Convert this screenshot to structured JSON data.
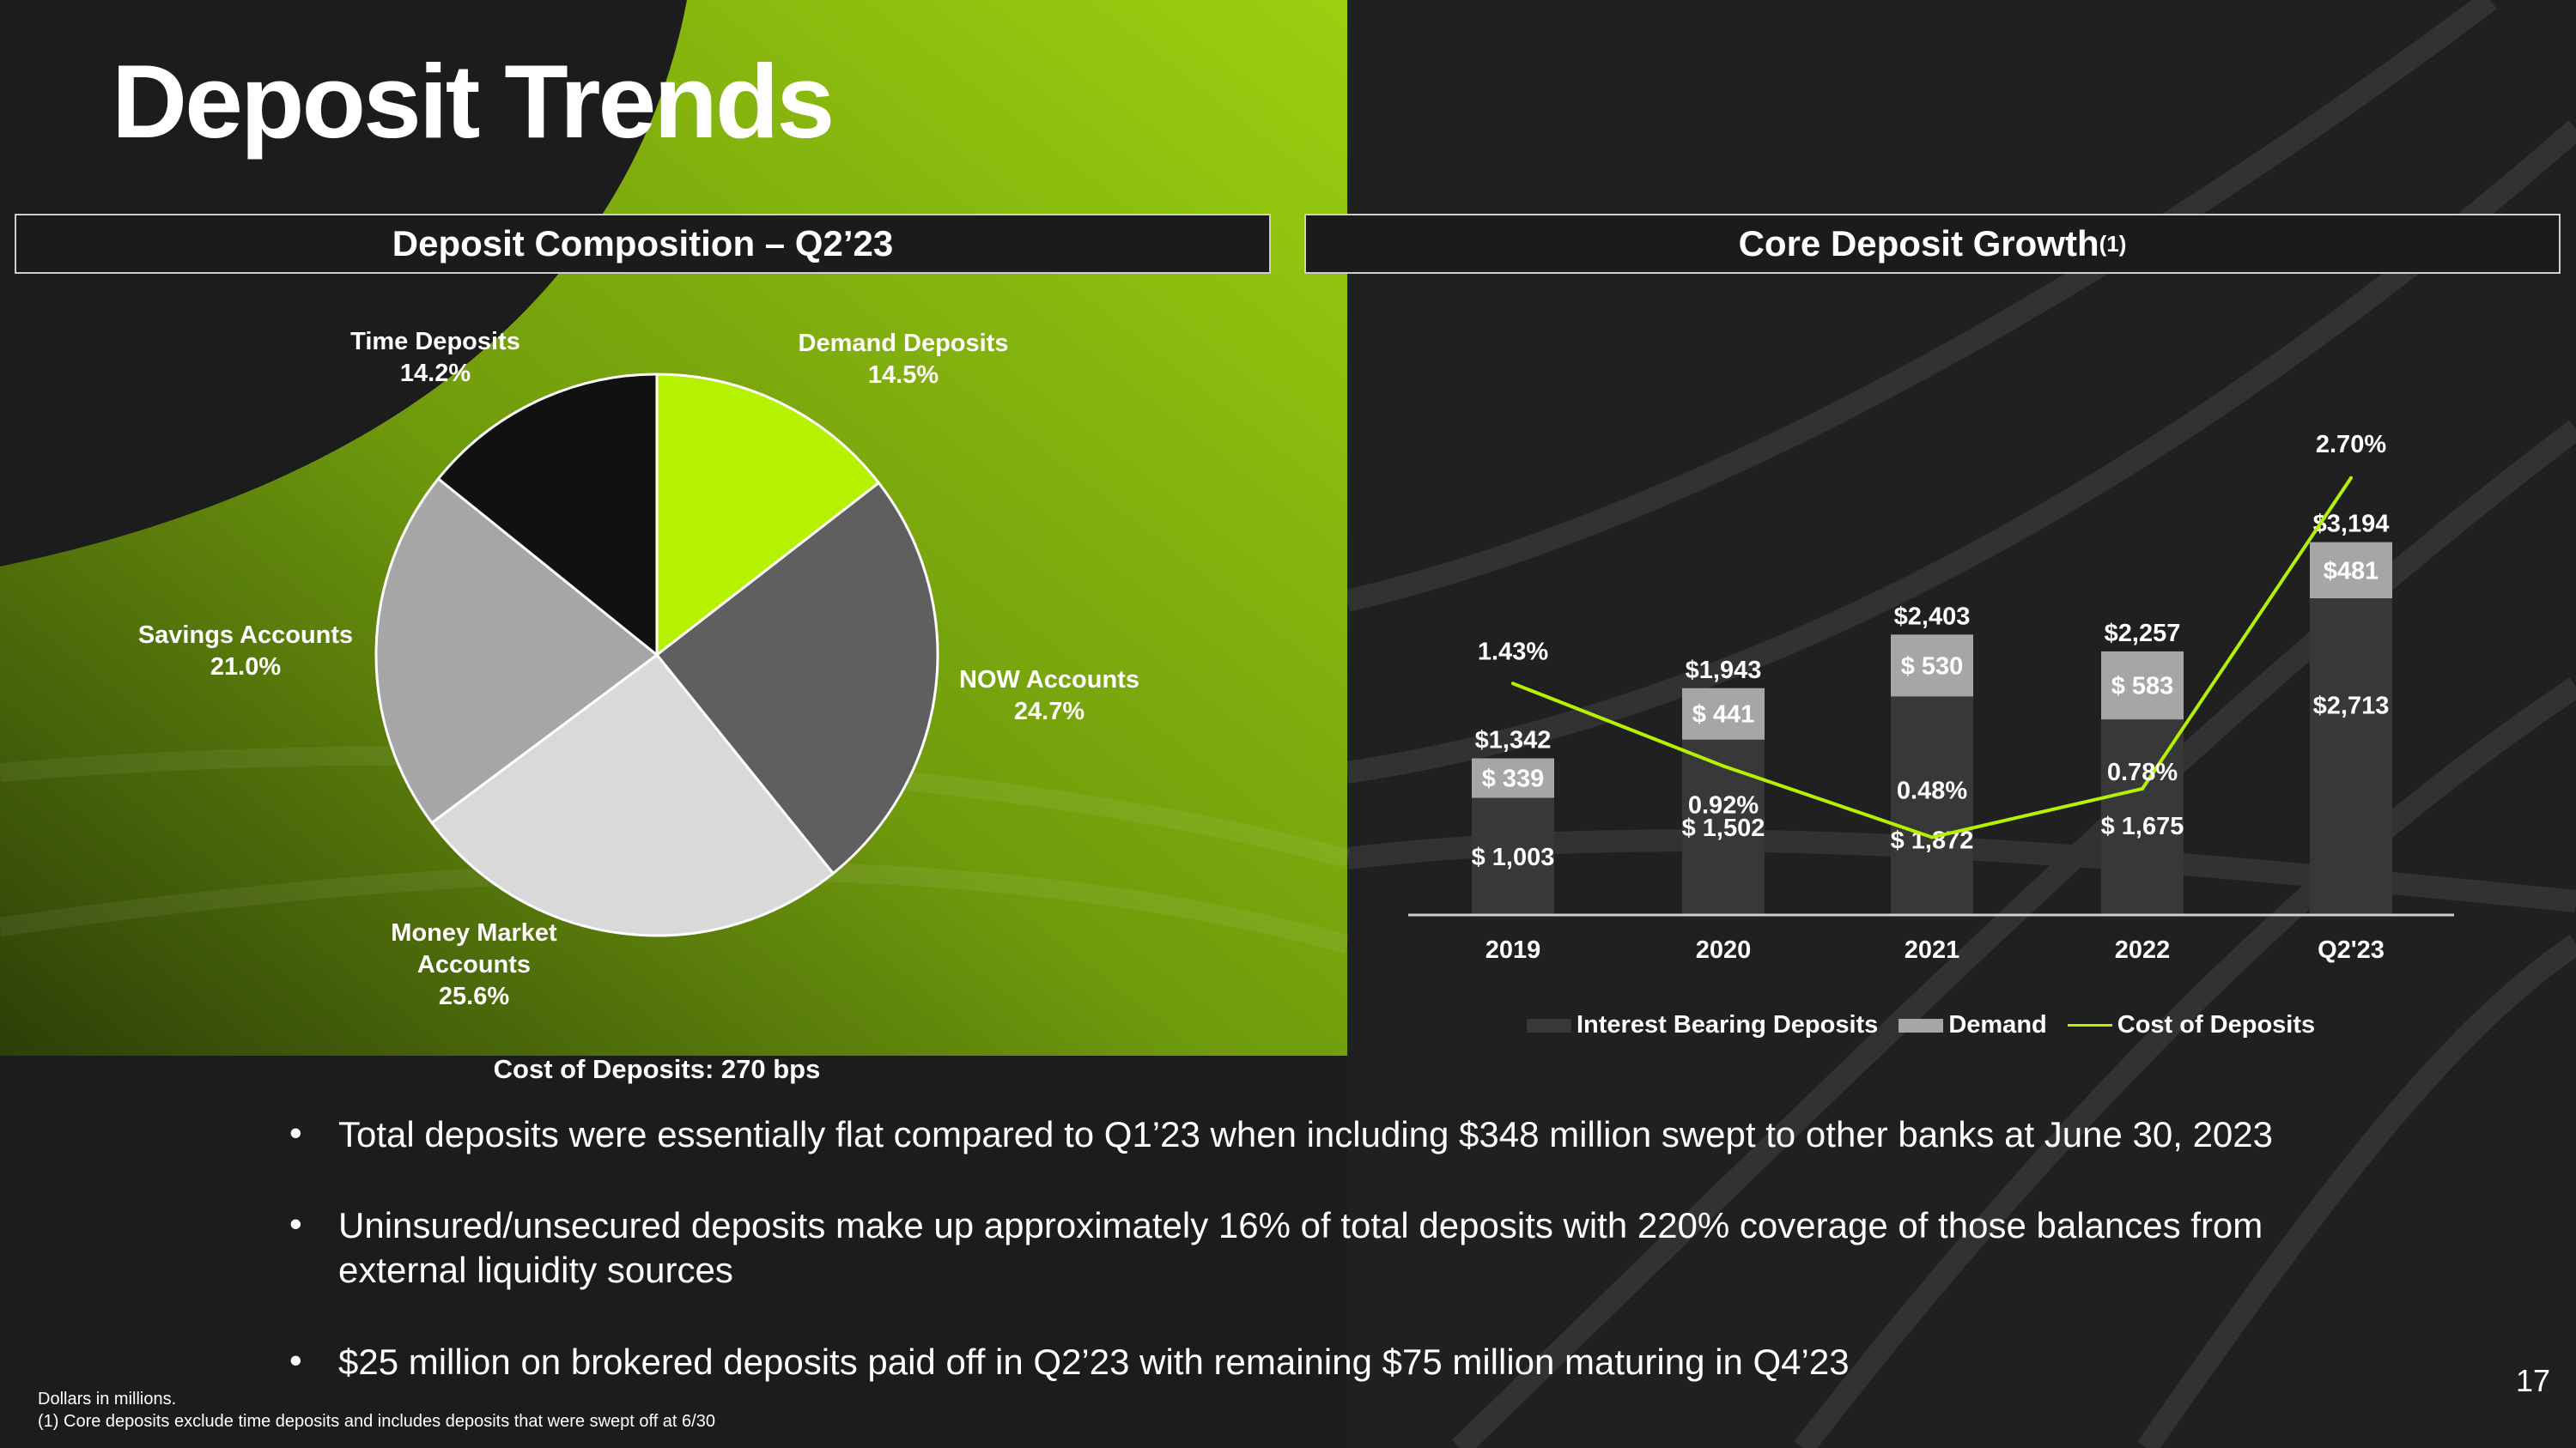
{
  "title": "Deposit Trends",
  "left_panel": {
    "header": "Deposit Composition – Q2’23",
    "cost_note": "Cost of Deposits: 270 bps"
  },
  "right_panel": {
    "header": "Core Deposit Growth",
    "header_sup": "(1)"
  },
  "colors": {
    "accent": "#b5f200",
    "ib": "#383838",
    "demand": "#a6a6a6",
    "line": "#b5f200"
  },
  "chart_data": [
    {
      "type": "pie",
      "title": "Deposit Composition – Q2’23",
      "slices": [
        {
          "name": "Demand Deposits",
          "pct_label": "14.5%",
          "value": 14.5,
          "color": "#b5f200"
        },
        {
          "name": "NOW Accounts",
          "pct_label": "24.7%",
          "value": 24.7,
          "color": "#5f5f5f"
        },
        {
          "name": "Money Market Accounts",
          "name_lines": [
            "Money Market",
            "Accounts"
          ],
          "pct_label": "25.6%",
          "value": 25.6,
          "color": "#d9d9d9"
        },
        {
          "name": "Savings Accounts",
          "pct_label": "21.0%",
          "value": 21.0,
          "color": "#a6a6a6"
        },
        {
          "name": "Time Deposits",
          "pct_label": "14.2%",
          "value": 14.2,
          "color": "#111111"
        }
      ]
    },
    {
      "type": "bar",
      "stacked": true,
      "title": "Core Deposit Growth",
      "categories": [
        "2019",
        "2020",
        "2021",
        "2022",
        "Q2'23"
      ],
      "series": [
        {
          "name": "Interest Bearing Deposits",
          "values": [
            1003,
            1502,
            1872,
            1675,
            2713
          ],
          "labels": [
            "$ 1,003",
            "$ 1,502",
            "$ 1,872",
            "$ 1,675",
            "$2,713"
          ]
        },
        {
          "name": "Demand",
          "values": [
            339,
            441,
            530,
            583,
            481
          ],
          "labels": [
            "$ 339",
            "$ 441",
            "$ 530",
            "$ 583",
            "$481"
          ]
        },
        {
          "name": "Cost of Deposits",
          "type": "line",
          "values": [
            1.43,
            0.92,
            0.48,
            0.78,
            2.7
          ],
          "labels": [
            "1.43%",
            "0.92%",
            "0.48%",
            "0.78%",
            "2.70%"
          ]
        }
      ],
      "totals": [
        1342,
        1943,
        2403,
        2257,
        3194
      ],
      "total_labels": [
        "$1,342",
        "$1,943",
        "$2,403",
        "$2,257",
        "$3,194"
      ],
      "legend": [
        "Interest Bearing Deposits",
        "Demand",
        "Cost of Deposits"
      ],
      "legend_position": "bottom",
      "grid": false
    }
  ],
  "bullets": [
    "Total deposits were essentially flat compared to Q1’23 when including $348 million swept to other banks at June 30, 2023",
    "Uninsured/unsecured deposits make up approximately 16% of total deposits with 220% coverage of those balances from external liquidity sources",
    "$25 million on brokered deposits paid off in Q2’23 with remaining $75 million maturing in Q4’23"
  ],
  "bullet_char": "•",
  "footnotes": [
    "Dollars in millions.",
    "(1) Core deposits exclude time deposits and includes deposits that were swept off at 6/30"
  ],
  "page_number": "17"
}
